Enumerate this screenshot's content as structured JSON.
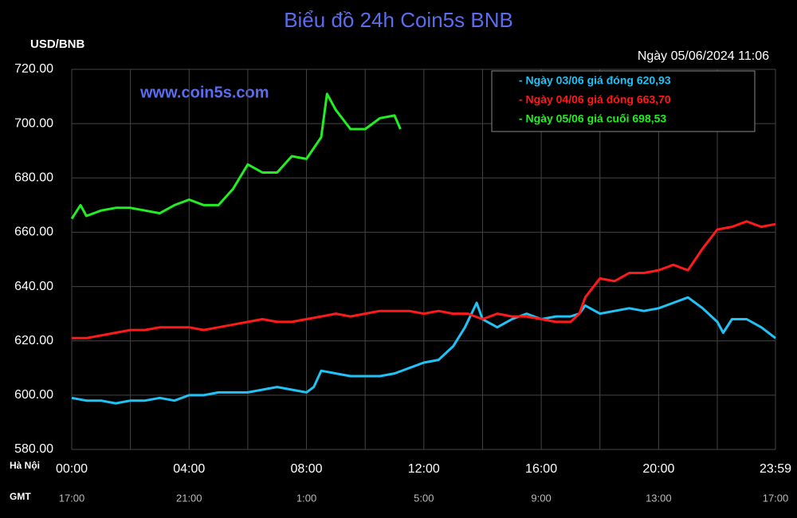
{
  "chart_data": {
    "type": "line",
    "title": "Biểu đồ 24h Coin5s BNB",
    "y_label": "USD/BNB",
    "subtitle": "Ngày 05/06/2024 11:06",
    "watermark": "www.coin5s.com",
    "x_row_label": "Hà Nội",
    "gmt_row_label": "GMT",
    "gmt_labels": [
      "17:00",
      "21:00",
      "1:00",
      "5:00",
      "9:00",
      "13:00",
      "17:00"
    ],
    "xlim": [
      0,
      23.983
    ],
    "xticks": [
      {
        "value": 0,
        "label": "00:00"
      },
      {
        "value": 4,
        "label": "04:00"
      },
      {
        "value": 8,
        "label": "08:00"
      },
      {
        "value": 12,
        "label": "12:00"
      },
      {
        "value": 16,
        "label": "16:00"
      },
      {
        "value": 20,
        "label": "20:00"
      },
      {
        "value": 23.983,
        "label": "23:59"
      }
    ],
    "x_minor_grid": [
      2,
      6,
      10,
      14,
      18,
      22
    ],
    "ylim": [
      580,
      720
    ],
    "yticks": [
      {
        "value": 580,
        "label": "580.00"
      },
      {
        "value": 600,
        "label": "600.00"
      },
      {
        "value": 620,
        "label": "620.00"
      },
      {
        "value": 640,
        "label": "640.00"
      },
      {
        "value": 660,
        "label": "660.00"
      },
      {
        "value": 680,
        "label": "680.00"
      },
      {
        "value": 700,
        "label": "700.00"
      },
      {
        "value": 720,
        "label": "720.00"
      }
    ],
    "grid": true,
    "legend_position": "top-right",
    "series": [
      {
        "name": "- Ngày 03/06 giá đóng 620,93",
        "color": "#1fc3f5",
        "x": [
          0,
          0.5,
          1,
          1.5,
          2,
          2.5,
          3,
          3.5,
          4,
          4.5,
          5,
          5.5,
          6,
          6.5,
          7,
          7.5,
          8,
          8.25,
          8.5,
          9,
          9.5,
          10,
          10.5,
          11,
          11.5,
          12,
          12.5,
          13,
          13.4,
          13.8,
          14,
          14.5,
          15,
          15.5,
          16,
          16.5,
          17,
          17.3,
          17.5,
          18,
          18.5,
          19,
          19.5,
          20,
          20.5,
          21,
          21.5,
          22,
          22.2,
          22.5,
          23,
          23.5,
          23.983
        ],
        "values": [
          599,
          598,
          598,
          597,
          598,
          598,
          599,
          598,
          600,
          600,
          601,
          601,
          601,
          602,
          603,
          602,
          601,
          603,
          609,
          608,
          607,
          607,
          607,
          608,
          610,
          612,
          613,
          618,
          625,
          634,
          628,
          625,
          628,
          630,
          628,
          629,
          629,
          630,
          633,
          630,
          631,
          632,
          631,
          632,
          634,
          636,
          632,
          627,
          623,
          628,
          628,
          625,
          621
        ]
      },
      {
        "name": "- Ngày 04/06 giá đóng 663,70",
        "color": "#ff1a1a",
        "x": [
          0,
          0.5,
          1,
          1.5,
          2,
          2.5,
          3,
          3.5,
          4,
          4.5,
          5,
          5.5,
          6,
          6.5,
          7,
          7.5,
          8,
          8.5,
          9,
          9.5,
          10,
          10.5,
          11,
          11.5,
          12,
          12.5,
          13,
          13.5,
          14,
          14.5,
          15,
          15.5,
          16,
          16.5,
          17,
          17.3,
          17.5,
          18,
          18.5,
          19,
          19.5,
          20,
          20.5,
          21,
          21.5,
          22,
          22.5,
          23,
          23.5,
          23.983
        ],
        "values": [
          621,
          621,
          622,
          623,
          624,
          624,
          625,
          625,
          625,
          624,
          625,
          626,
          627,
          628,
          627,
          627,
          628,
          629,
          630,
          629,
          630,
          631,
          631,
          631,
          630,
          631,
          630,
          630,
          628,
          630,
          629,
          629,
          628,
          627,
          627,
          630,
          636,
          643,
          642,
          645,
          645,
          646,
          648,
          646,
          654,
          661,
          662,
          664,
          662,
          663
        ]
      },
      {
        "name": "- Ngày 05/06 giá cuối 698,53",
        "color": "#22ee22",
        "x": [
          0,
          0.3,
          0.5,
          1,
          1.5,
          2,
          2.5,
          3,
          3.5,
          4,
          4.5,
          5,
          5.5,
          6,
          6.5,
          7,
          7.5,
          8,
          8.5,
          8.7,
          9,
          9.5,
          10,
          10.5,
          11,
          11.2
        ],
        "values": [
          665,
          670,
          666,
          668,
          669,
          669,
          668,
          667,
          670,
          672,
          670,
          670,
          676,
          685,
          682,
          682,
          688,
          687,
          695,
          711,
          705,
          698,
          698,
          702,
          703,
          698
        ]
      }
    ]
  }
}
